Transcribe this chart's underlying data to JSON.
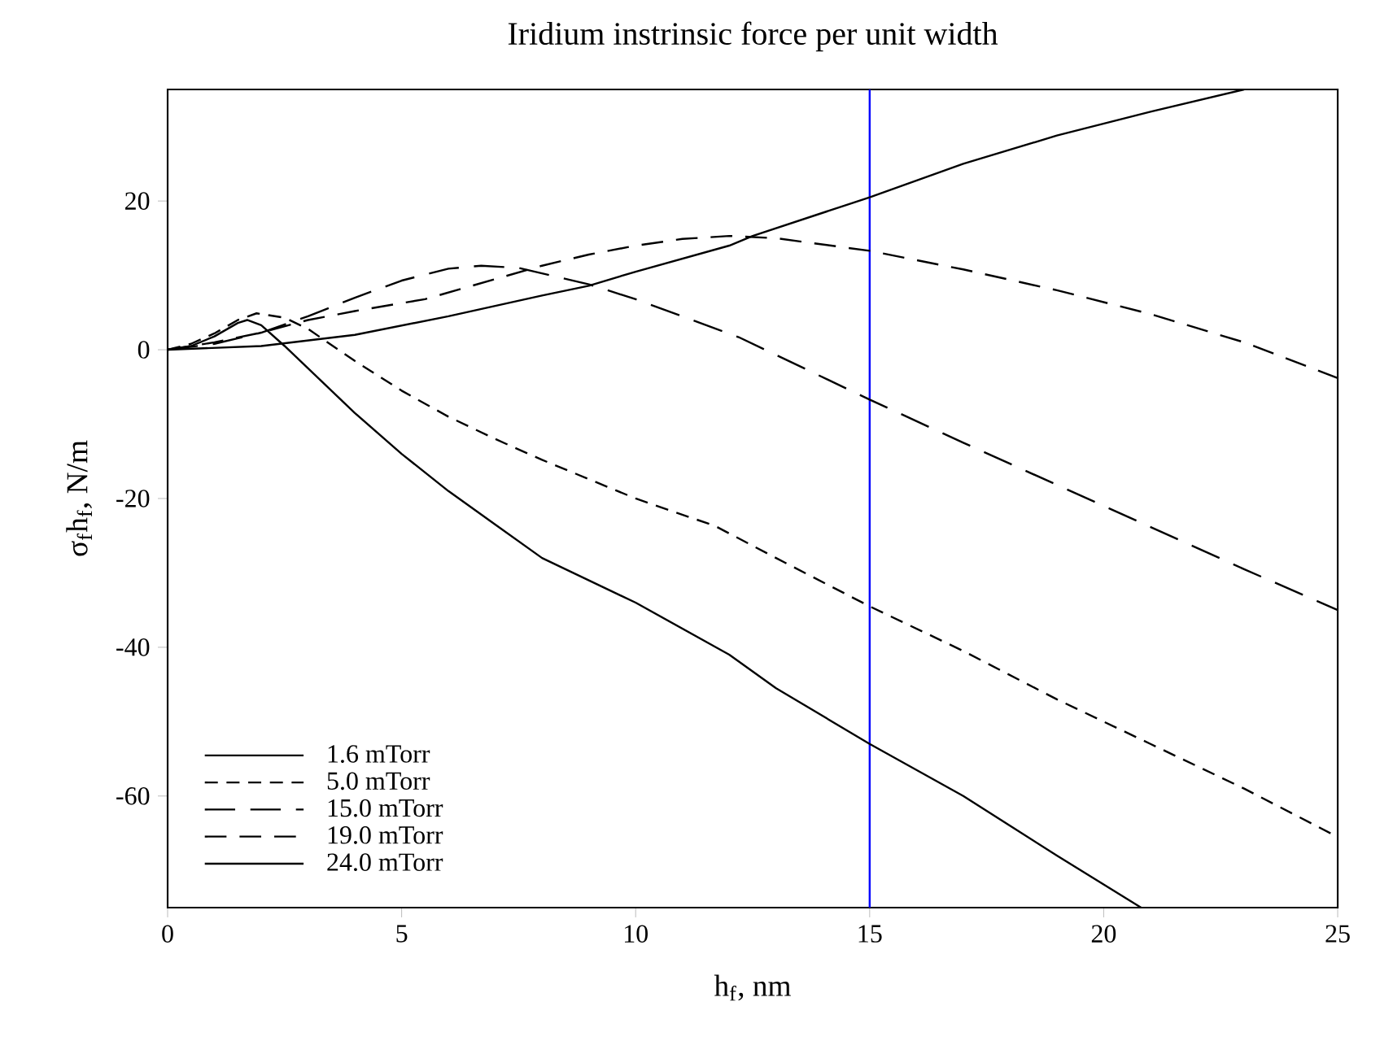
{
  "chart_data": {
    "type": "line",
    "title": "Iridium instrinsic force per unit width",
    "xlabel": "h$_{f}$, nm",
    "ylabel": "σ$_{f}$h$_{f}$, N/m",
    "xlim": [
      0,
      25
    ],
    "ylim": [
      -75,
      35
    ],
    "xticks": [
      0,
      5,
      10,
      15,
      20,
      25
    ],
    "yticks": [
      -60,
      -40,
      -20,
      0,
      20
    ],
    "grid": false,
    "legend": "bottom left",
    "marker": "none",
    "ref_lines": [
      {
        "axis": "x",
        "value": 15,
        "color": "#0000ff"
      }
    ],
    "series": [
      {
        "name": "1.6 mTorr",
        "color": "#000000",
        "line_style": "solid",
        "x": [
          0,
          0.5,
          1,
          1.5,
          1.7,
          2,
          2.5,
          3,
          4,
          5,
          6,
          7,
          8,
          10,
          12,
          13,
          15,
          17,
          19,
          20.8
        ],
        "values": [
          0,
          0.5,
          1.8,
          3.6,
          4.0,
          3.3,
          0.5,
          -2.5,
          -8.5,
          -14,
          -19,
          -23.5,
          -28,
          -34,
          -41,
          -45.5,
          -53,
          -60,
          -68,
          -75
        ]
      },
      {
        "name": "5.0 mTorr",
        "color": "#000000",
        "line_style": "dashed",
        "x": [
          0,
          0.5,
          1,
          1.5,
          1.9,
          2.5,
          3,
          4,
          5,
          6,
          7,
          8,
          10,
          11.7,
          13,
          15,
          17,
          19,
          21,
          23,
          25
        ],
        "values": [
          0,
          0.8,
          2.2,
          4,
          4.9,
          4.3,
          2.8,
          -1.5,
          -5.5,
          -9,
          -12,
          -14.8,
          -20,
          -23.7,
          -28,
          -34.5,
          -40.5,
          -47,
          -53,
          -59,
          -65.5
        ]
      },
      {
        "name": "15.0 mTorr",
        "color": "#000000",
        "line_style": "dashed",
        "x": [
          0,
          1,
          2,
          3,
          4,
          5,
          6,
          6.7,
          7.5,
          9,
          10,
          12.2,
          15,
          17,
          20,
          23,
          25
        ],
        "values": [
          0,
          0.8,
          2.3,
          4.5,
          7,
          9.3,
          10.9,
          11.3,
          11,
          8.8,
          6.8,
          1.7,
          -6.7,
          -12.5,
          -21,
          -29.5,
          -35
        ]
      },
      {
        "name": "19.0 mTorr",
        "color": "#000000",
        "line_style": "dashed",
        "x": [
          0,
          1,
          2,
          3,
          4,
          5.5,
          7,
          8,
          9,
          10,
          11,
          12,
          13,
          15,
          17,
          19,
          21,
          23,
          25
        ],
        "values": [
          0,
          1,
          2.3,
          4,
          5.2,
          6.8,
          9.5,
          11.3,
          12.8,
          14,
          14.9,
          15.3,
          15,
          13.3,
          10.8,
          8,
          4.8,
          1,
          -3.8
        ]
      },
      {
        "name": "24.0 mTorr",
        "color": "#000000",
        "line_style": "solid",
        "x": [
          0,
          2,
          4,
          6,
          8,
          9,
          10,
          12,
          12.5,
          15,
          17,
          19,
          21,
          23
        ],
        "values": [
          0,
          0.5,
          2,
          4.5,
          7.3,
          8.6,
          10.5,
          14,
          15.3,
          20.5,
          25,
          28.8,
          32,
          35
        ]
      }
    ]
  }
}
